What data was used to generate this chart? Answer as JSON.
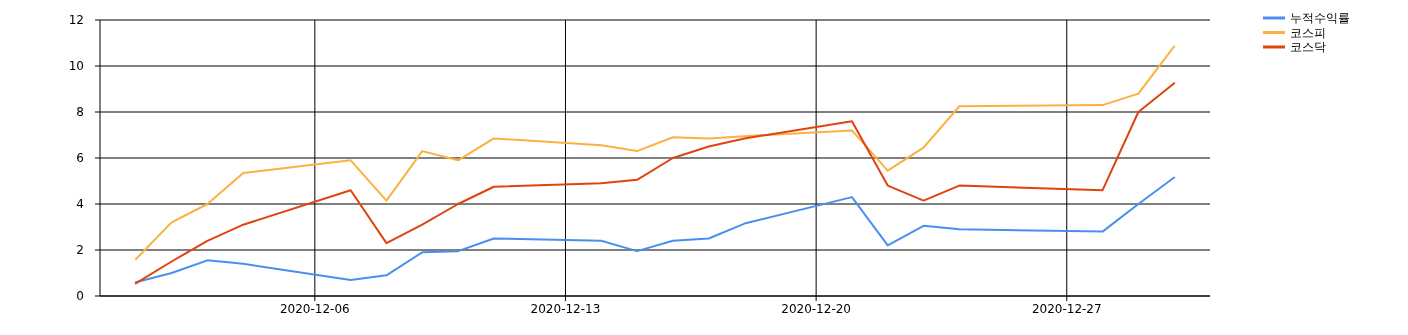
{
  "chart_data": {
    "type": "line",
    "x": [
      "2020-12-01",
      "2020-12-02",
      "2020-12-03",
      "2020-12-04",
      "2020-12-07",
      "2020-12-08",
      "2020-12-09",
      "2020-12-10",
      "2020-12-11",
      "2020-12-14",
      "2020-12-15",
      "2020-12-16",
      "2020-12-17",
      "2020-12-18",
      "2020-12-21",
      "2020-12-22",
      "2020-12-23",
      "2020-12-24",
      "2020-12-28",
      "2020-12-29",
      "2020-12-30"
    ],
    "series": [
      {
        "name": "누적수익률",
        "color": "#4a8ff0",
        "values": [
          0.6,
          1.0,
          1.55,
          1.4,
          0.7,
          0.9,
          1.9,
          1.95,
          2.5,
          2.4,
          1.95,
          2.4,
          2.5,
          3.15,
          4.3,
          2.2,
          3.05,
          2.9,
          2.8,
          4.0,
          5.15
        ]
      },
      {
        "name": "코스피",
        "color": "#fbb040",
        "values": [
          1.6,
          3.2,
          4.0,
          5.35,
          5.9,
          4.15,
          6.3,
          5.9,
          6.85,
          6.55,
          6.3,
          6.9,
          6.85,
          6.95,
          7.2,
          5.45,
          6.45,
          8.25,
          8.3,
          8.8,
          10.85
        ]
      },
      {
        "name": "코스닥",
        "color": "#e0440e",
        "values": [
          0.55,
          1.5,
          2.4,
          3.1,
          4.6,
          2.3,
          3.1,
          4.0,
          4.75,
          4.9,
          5.05,
          6.0,
          6.5,
          6.85,
          7.6,
          4.8,
          4.15,
          4.8,
          4.6,
          8.0,
          9.25
        ]
      }
    ],
    "xlim": [
      "2020-11-30",
      "2020-12-31"
    ],
    "xticks": [
      {
        "value": "2020-12-06",
        "label": "2020-12-06"
      },
      {
        "value": "2020-12-13",
        "label": "2020-12-13"
      },
      {
        "value": "2020-12-20",
        "label": "2020-12-20"
      },
      {
        "value": "2020-12-27",
        "label": "2020-12-27"
      }
    ],
    "ylim": [
      0,
      12
    ],
    "yticks": [
      0,
      2,
      4,
      6,
      8,
      10,
      12
    ],
    "grid": true,
    "legend": "top right",
    "marker": "none",
    "line_style": "solid"
  }
}
